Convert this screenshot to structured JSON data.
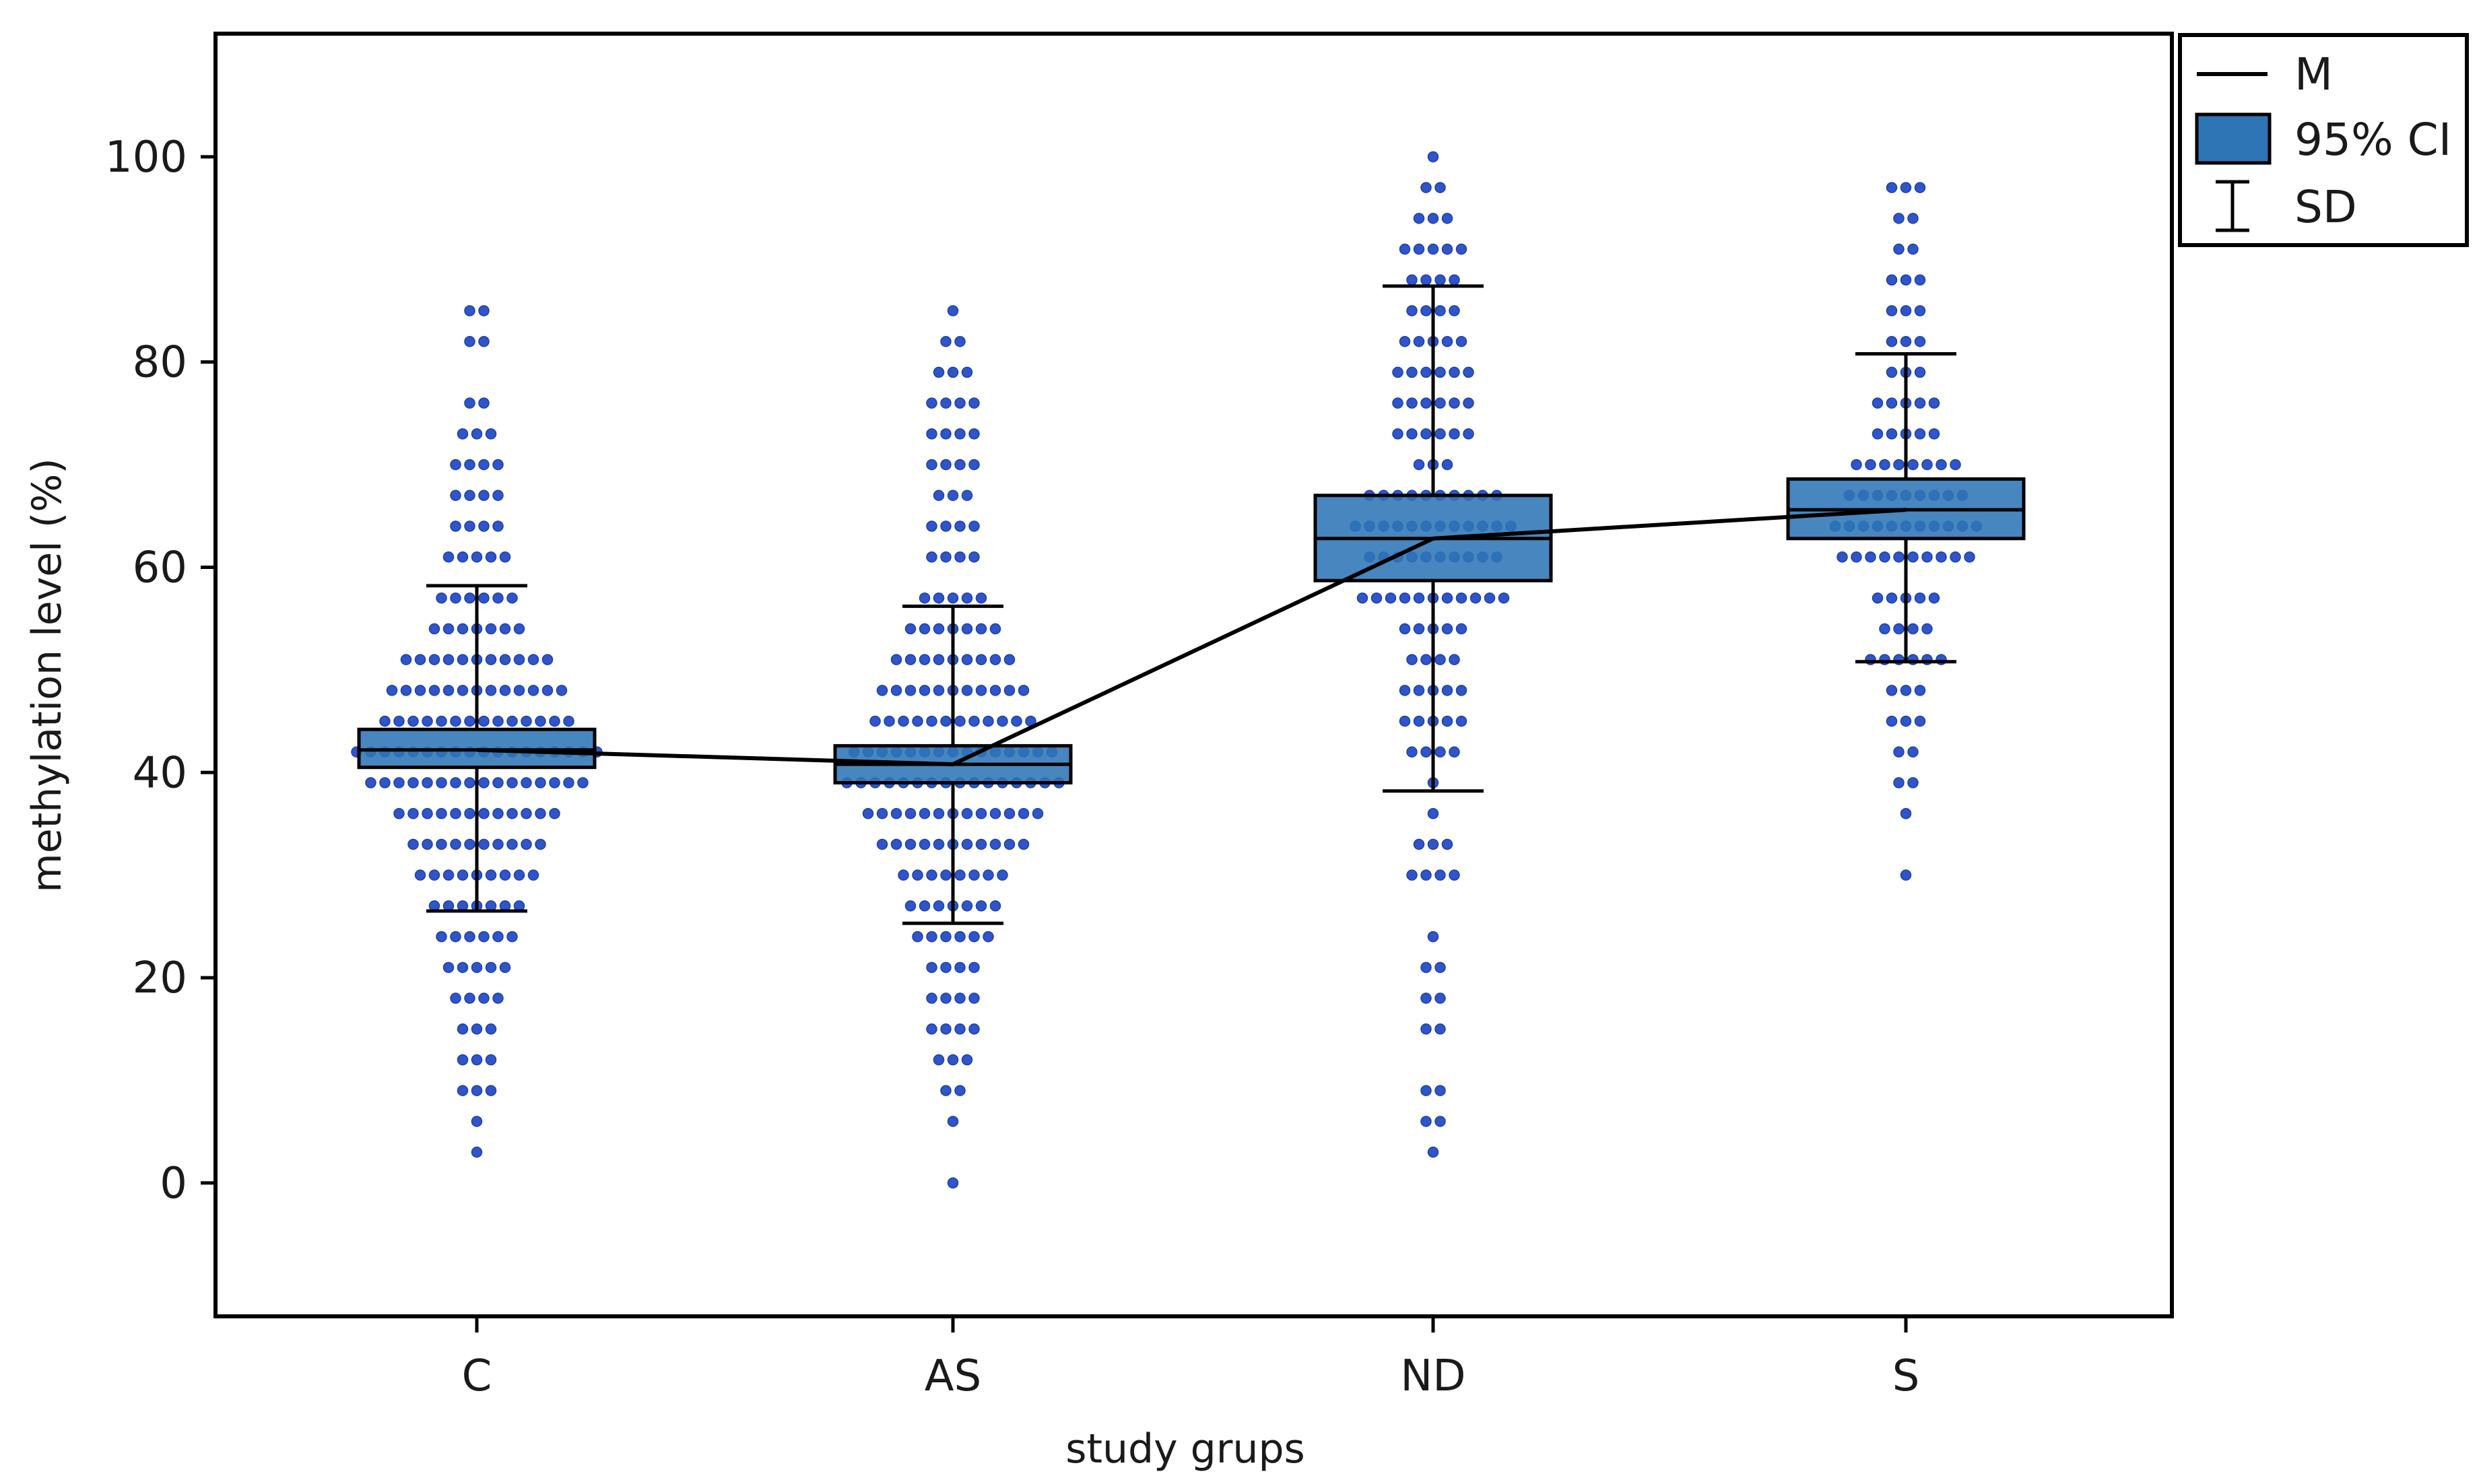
{
  "chart_data": {
    "type": "box-dot",
    "xlabel": "study grups",
    "ylabel": "methylation level (%)",
    "ylim": [
      -13,
      112
    ],
    "yticks": [
      0,
      20,
      40,
      60,
      80,
      100
    ],
    "grid": false,
    "legend_position": "top-right-outside",
    "legend": [
      {
        "key": "mean",
        "label": "M"
      },
      {
        "key": "ci",
        "label": "95% CI"
      },
      {
        "key": "sd",
        "label": "SD"
      }
    ],
    "colors": {
      "box_fill": "#2E75B6",
      "dot": "#2F55C8",
      "line": "#000000"
    },
    "categories": [
      "C",
      "AS",
      "ND",
      "S"
    ],
    "groups": [
      {
        "name": "C",
        "mean": 42.2,
        "ci_low": 40.5,
        "ci_high": 44.2,
        "sd_low": 26.5,
        "sd_high": 58.2,
        "points": [
          {
            "v": 3,
            "n": 1
          },
          {
            "v": 6,
            "n": 1
          },
          {
            "v": 9,
            "n": 3
          },
          {
            "v": 12,
            "n": 3
          },
          {
            "v": 15,
            "n": 3
          },
          {
            "v": 18,
            "n": 4
          },
          {
            "v": 21,
            "n": 5
          },
          {
            "v": 24,
            "n": 6
          },
          {
            "v": 27,
            "n": 7
          },
          {
            "v": 30,
            "n": 9
          },
          {
            "v": 33,
            "n": 10
          },
          {
            "v": 36,
            "n": 12
          },
          {
            "v": 39,
            "n": 16
          },
          {
            "v": 42,
            "n": 18
          },
          {
            "v": 45,
            "n": 14
          },
          {
            "v": 48,
            "n": 13
          },
          {
            "v": 51,
            "n": 11
          },
          {
            "v": 54,
            "n": 7
          },
          {
            "v": 57,
            "n": 6
          },
          {
            "v": 61,
            "n": 5
          },
          {
            "v": 64,
            "n": 4
          },
          {
            "v": 67,
            "n": 4
          },
          {
            "v": 70,
            "n": 4
          },
          {
            "v": 73,
            "n": 3
          },
          {
            "v": 76,
            "n": 2
          },
          {
            "v": 82,
            "n": 2
          },
          {
            "v": 85,
            "n": 2
          }
        ]
      },
      {
        "name": "AS",
        "mean": 40.8,
        "ci_low": 39.0,
        "ci_high": 42.6,
        "sd_low": 25.3,
        "sd_high": 56.2,
        "points": [
          {
            "v": 0,
            "n": 1
          },
          {
            "v": 6,
            "n": 1
          },
          {
            "v": 9,
            "n": 2
          },
          {
            "v": 12,
            "n": 3
          },
          {
            "v": 15,
            "n": 4
          },
          {
            "v": 18,
            "n": 4
          },
          {
            "v": 21,
            "n": 4
          },
          {
            "v": 24,
            "n": 6
          },
          {
            "v": 27,
            "n": 7
          },
          {
            "v": 30,
            "n": 8
          },
          {
            "v": 33,
            "n": 11
          },
          {
            "v": 36,
            "n": 13
          },
          {
            "v": 39,
            "n": 16
          },
          {
            "v": 42,
            "n": 15
          },
          {
            "v": 45,
            "n": 12
          },
          {
            "v": 48,
            "n": 11
          },
          {
            "v": 51,
            "n": 9
          },
          {
            "v": 54,
            "n": 7
          },
          {
            "v": 57,
            "n": 5
          },
          {
            "v": 61,
            "n": 4
          },
          {
            "v": 64,
            "n": 4
          },
          {
            "v": 67,
            "n": 3
          },
          {
            "v": 70,
            "n": 4
          },
          {
            "v": 73,
            "n": 4
          },
          {
            "v": 76,
            "n": 4
          },
          {
            "v": 79,
            "n": 3
          },
          {
            "v": 82,
            "n": 2
          },
          {
            "v": 85,
            "n": 1
          }
        ]
      },
      {
        "name": "ND",
        "mean": 62.8,
        "ci_low": 58.7,
        "ci_high": 67.0,
        "sd_low": 38.2,
        "sd_high": 87.4,
        "points": [
          {
            "v": 3,
            "n": 1
          },
          {
            "v": 6,
            "n": 2
          },
          {
            "v": 9,
            "n": 2
          },
          {
            "v": 15,
            "n": 2
          },
          {
            "v": 18,
            "n": 2
          },
          {
            "v": 21,
            "n": 2
          },
          {
            "v": 24,
            "n": 1
          },
          {
            "v": 30,
            "n": 4
          },
          {
            "v": 33,
            "n": 3
          },
          {
            "v": 36,
            "n": 1
          },
          {
            "v": 39,
            "n": 1
          },
          {
            "v": 42,
            "n": 4
          },
          {
            "v": 45,
            "n": 5
          },
          {
            "v": 48,
            "n": 5
          },
          {
            "v": 51,
            "n": 4
          },
          {
            "v": 54,
            "n": 5
          },
          {
            "v": 57,
            "n": 11
          },
          {
            "v": 61,
            "n": 10
          },
          {
            "v": 64,
            "n": 12
          },
          {
            "v": 67,
            "n": 10
          },
          {
            "v": 70,
            "n": 3
          },
          {
            "v": 73,
            "n": 6
          },
          {
            "v": 76,
            "n": 6
          },
          {
            "v": 79,
            "n": 6
          },
          {
            "v": 82,
            "n": 5
          },
          {
            "v": 85,
            "n": 4
          },
          {
            "v": 88,
            "n": 4
          },
          {
            "v": 91,
            "n": 5
          },
          {
            "v": 94,
            "n": 3
          },
          {
            "v": 97,
            "n": 2
          },
          {
            "v": 100,
            "n": 1
          }
        ]
      },
      {
        "name": "S",
        "mean": 65.6,
        "ci_low": 62.8,
        "ci_high": 68.6,
        "sd_low": 50.8,
        "sd_high": 80.8,
        "points": [
          {
            "v": 30,
            "n": 1
          },
          {
            "v": 36,
            "n": 1
          },
          {
            "v": 39,
            "n": 2
          },
          {
            "v": 42,
            "n": 2
          },
          {
            "v": 45,
            "n": 3
          },
          {
            "v": 48,
            "n": 3
          },
          {
            "v": 51,
            "n": 6
          },
          {
            "v": 54,
            "n": 4
          },
          {
            "v": 57,
            "n": 5
          },
          {
            "v": 61,
            "n": 10
          },
          {
            "v": 64,
            "n": 11
          },
          {
            "v": 67,
            "n": 9
          },
          {
            "v": 70,
            "n": 8
          },
          {
            "v": 73,
            "n": 5
          },
          {
            "v": 76,
            "n": 5
          },
          {
            "v": 79,
            "n": 3
          },
          {
            "v": 82,
            "n": 3
          },
          {
            "v": 85,
            "n": 3
          },
          {
            "v": 88,
            "n": 3
          },
          {
            "v": 91,
            "n": 2
          },
          {
            "v": 94,
            "n": 2
          },
          {
            "v": 97,
            "n": 3
          }
        ]
      }
    ]
  }
}
